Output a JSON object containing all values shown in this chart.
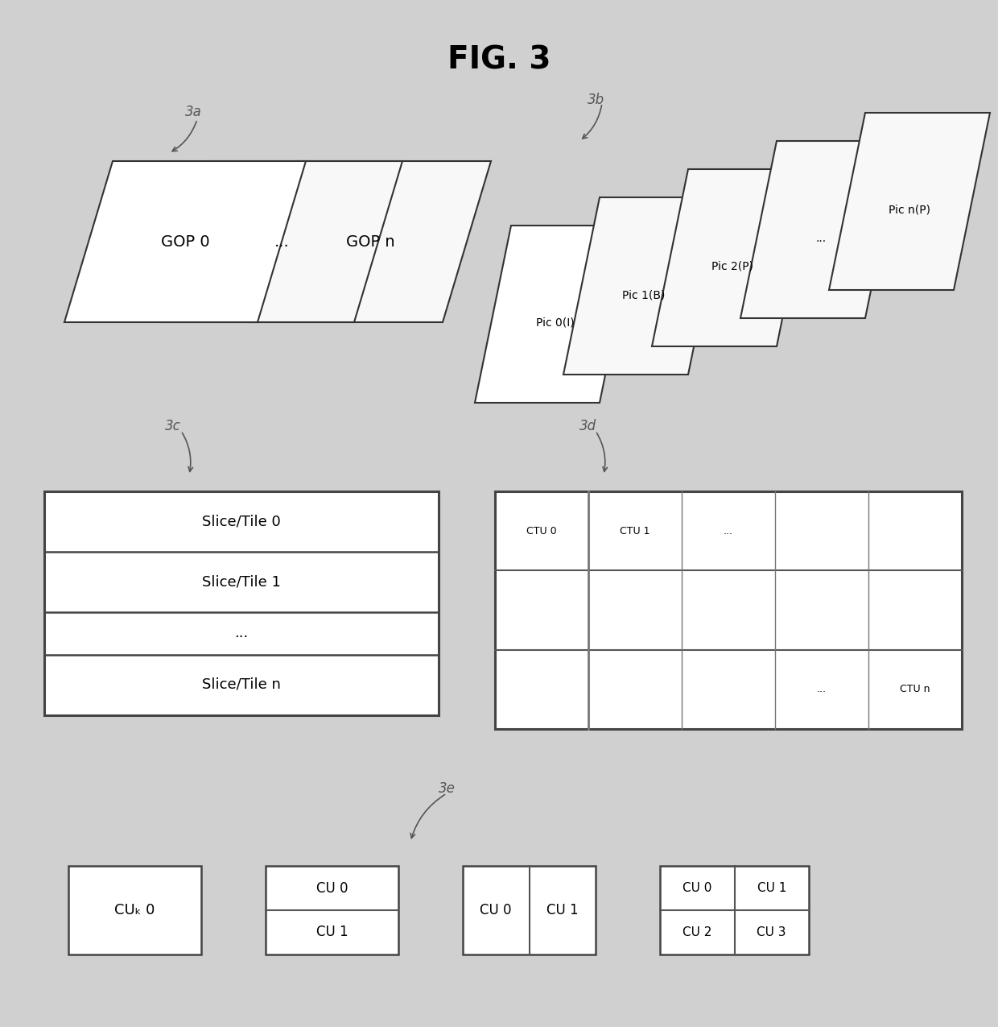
{
  "title": "FIG. 3",
  "bg_color": "#d0d0d0",
  "box_fc": "#ffffff",
  "box_ec": "#333333",
  "lw": 1.5,
  "section_labels": [
    "3a",
    "3b",
    "3c",
    "3d",
    "3e"
  ],
  "gop_labels": [
    "GOP 0",
    "...",
    "GOP n"
  ],
  "pic_labels": [
    "Pic 0(I)",
    "Pic 1(B)",
    "Pic 2(P)",
    "...",
    "Pic n(P)"
  ],
  "slice_labels": [
    "Slice/Tile 0",
    "Slice/Tile 1",
    "...",
    "Slice/Tile n"
  ],
  "ctu_top_labels": [
    "CTU 0",
    "CTU 1",
    "..."
  ],
  "ctu_bottom_right": "CTU n",
  "ctu_bottom_dots": "..."
}
